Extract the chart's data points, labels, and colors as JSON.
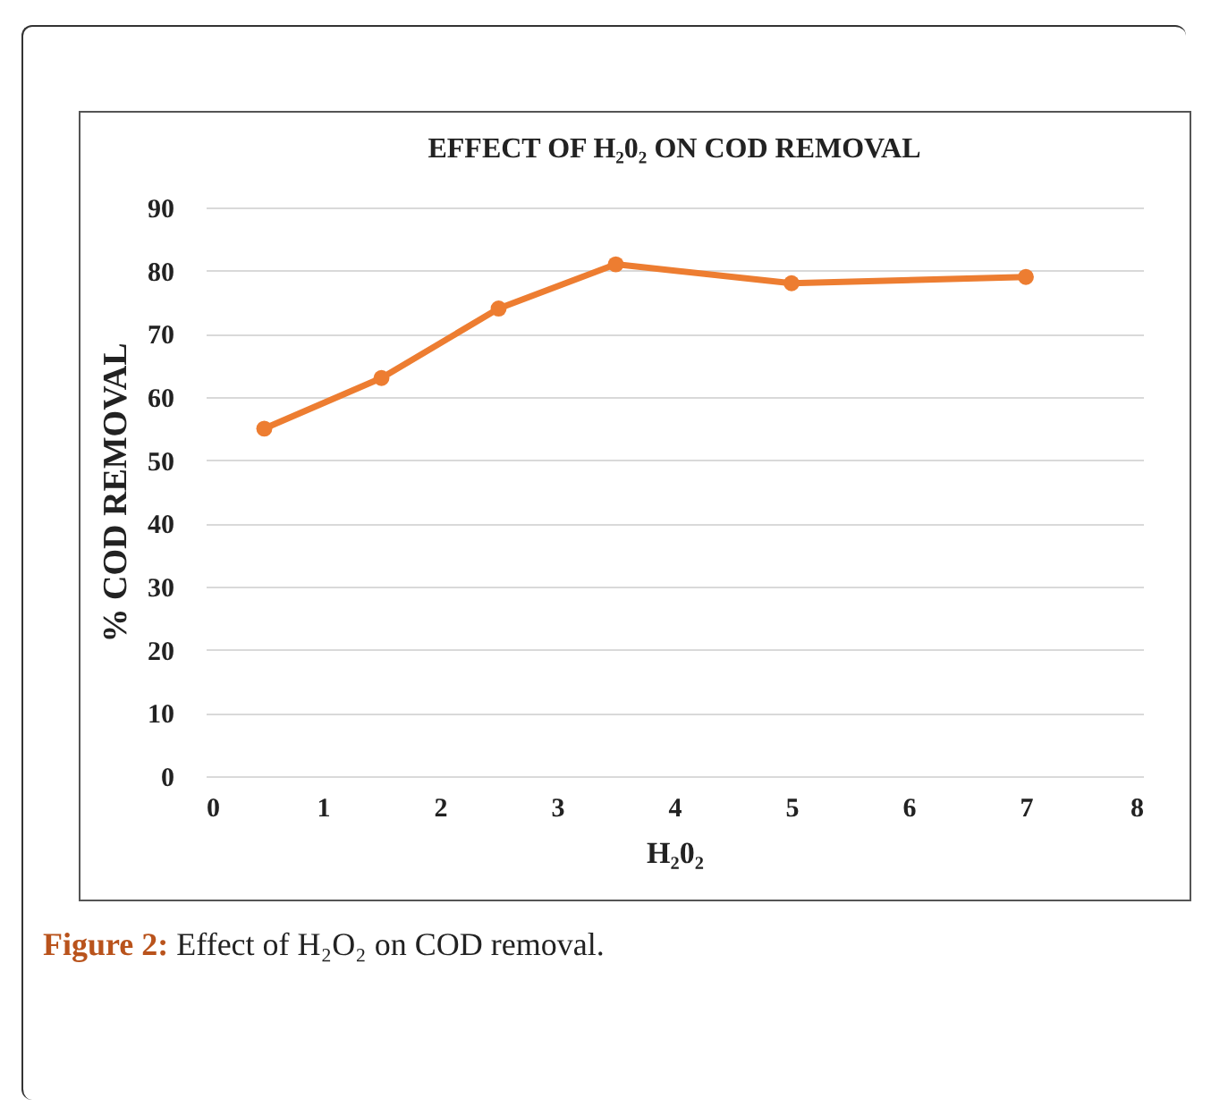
{
  "chart_data": {
    "type": "line",
    "title": "EFFECT OF H₂0₂ ON COD REMOVAL",
    "xlabel": "H₂0₂",
    "ylabel": "% COD REMOVAL",
    "x": [
      0.5,
      1.5,
      2.5,
      3.5,
      5,
      7
    ],
    "series": [
      {
        "color": "#ed7d31",
        "values": [
          55,
          63,
          74,
          81,
          78,
          79
        ]
      }
    ],
    "xlim": [
      0,
      8
    ],
    "xticks": [
      0,
      1,
      2,
      3,
      4,
      5,
      6,
      7,
      8
    ],
    "ylim": [
      0,
      90
    ],
    "yticks": [
      0,
      10,
      20,
      30,
      40,
      50,
      60,
      70,
      80,
      90
    ],
    "grid": "y",
    "marker": "circle",
    "line_style": "solid",
    "annotations": [
      "Figure 2: Effect of H₂O₂ on COD removal."
    ]
  }
}
